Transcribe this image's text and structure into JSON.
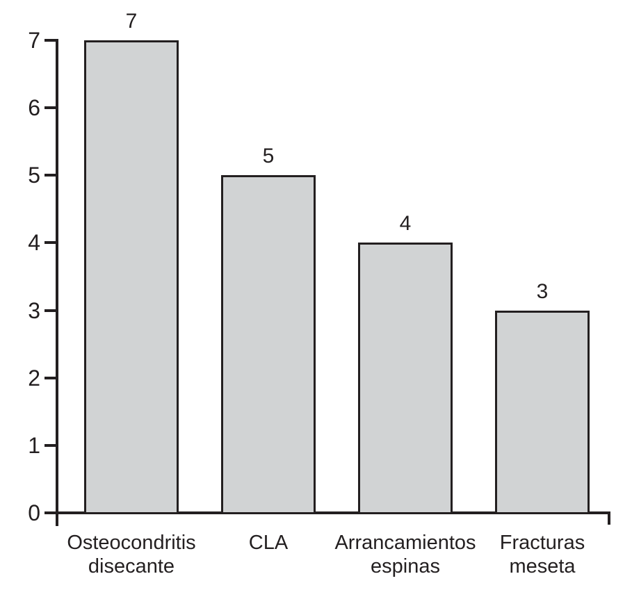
{
  "chart_data": {
    "type": "bar",
    "title": "",
    "xlabel": "",
    "ylabel": "",
    "categories": [
      [
        "Osteocondritis",
        "disecante"
      ],
      [
        "CLA"
      ],
      [
        "Arrancamientos",
        "espinas"
      ],
      [
        "Fracturas",
        "meseta"
      ]
    ],
    "values": [
      7,
      5,
      4,
      3
    ],
    "value_labels": [
      "7",
      "5",
      "4",
      "3"
    ],
    "yticks": [
      "0",
      "1",
      "2",
      "3",
      "4",
      "5",
      "6",
      "7"
    ],
    "ylim": [
      0,
      7
    ],
    "grid": false,
    "legend": "none",
    "colors": {
      "bar_fill": "#d1d3d4",
      "bar_border": "#231f20",
      "axis": "#231f20",
      "text": "#231f20"
    }
  }
}
